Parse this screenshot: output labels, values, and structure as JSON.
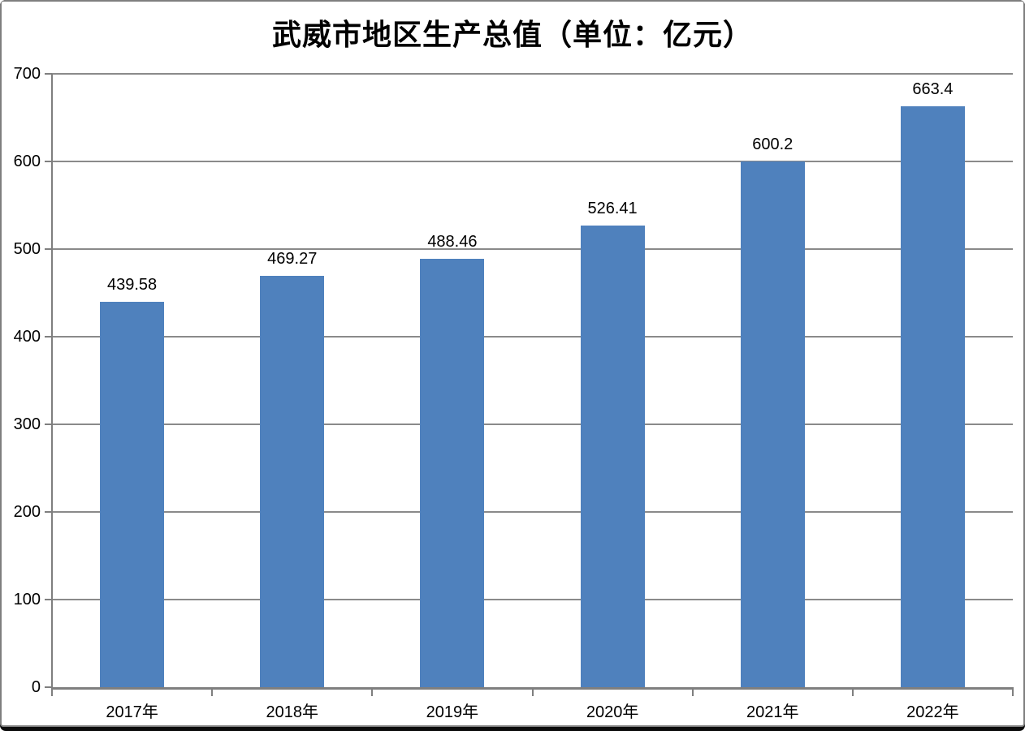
{
  "chart_data": {
    "type": "bar",
    "title": "武威市地区生产总值（单位：亿元）",
    "categories": [
      "2017年",
      "2018年",
      "2019年",
      "2020年",
      "2021年",
      "2022年"
    ],
    "values": [
      439.58,
      469.27,
      488.46,
      526.41,
      600.2,
      663.4
    ],
    "data_labels": [
      "439.58",
      "469.27",
      "488.46",
      "526.41",
      "600.2",
      "663.4"
    ],
    "xlabel": "",
    "ylabel": "",
    "ylim": [
      0,
      700
    ],
    "yticks": [
      0,
      100,
      200,
      300,
      400,
      500,
      600,
      700
    ],
    "grid": true,
    "legend": "none",
    "bar_color": "#4F81BD",
    "axis_color": "#7f7f7f",
    "gridline_color": "#8a8a8a",
    "label_color": "#000000",
    "frame_border_color": "#7f7f7f"
  }
}
